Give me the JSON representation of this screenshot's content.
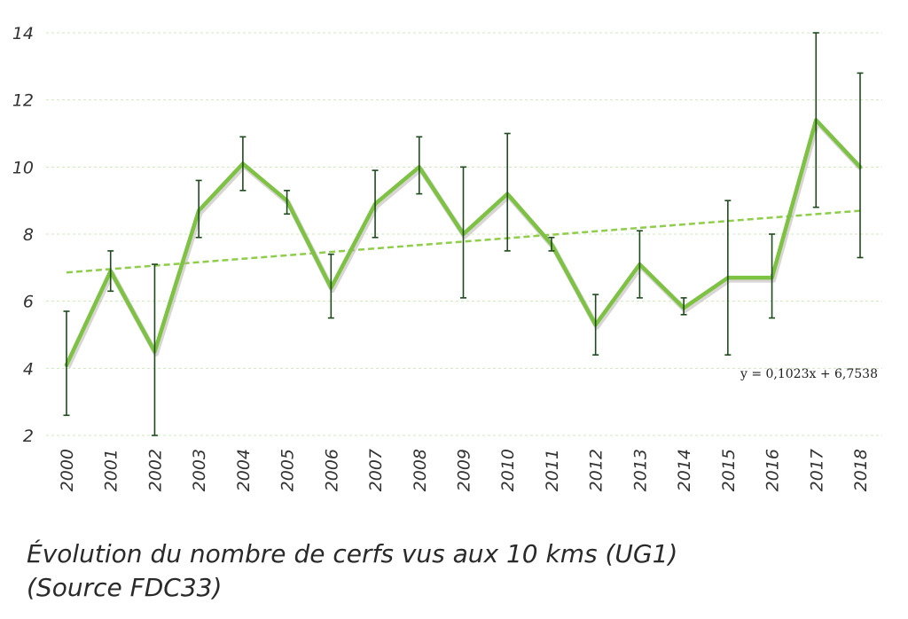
{
  "chart_data": {
    "type": "line",
    "x": [
      "2000",
      "2001",
      "2002",
      "2003",
      "2004",
      "2005",
      "2006",
      "2007",
      "2008",
      "2009",
      "2010",
      "2011",
      "2012",
      "2013",
      "2014",
      "2015",
      "2016",
      "2017",
      "2018"
    ],
    "series": [
      {
        "values": [
          4.1,
          6.9,
          4.5,
          8.7,
          10.1,
          9.0,
          6.4,
          8.9,
          10.0,
          8.0,
          9.2,
          7.7,
          5.3,
          7.1,
          5.8,
          6.7,
          6.7,
          11.4,
          10.0
        ],
        "error_low": [
          2.6,
          6.3,
          2.0,
          7.9,
          9.3,
          8.6,
          5.5,
          7.9,
          9.2,
          6.1,
          7.5,
          7.5,
          4.4,
          6.1,
          5.6,
          4.4,
          5.5,
          8.8,
          7.3
        ],
        "error_high": [
          5.7,
          7.5,
          7.1,
          9.6,
          10.9,
          9.3,
          7.4,
          9.9,
          10.9,
          10.0,
          11.0,
          7.9,
          6.2,
          8.1,
          6.1,
          9.0,
          8.0,
          14.0,
          12.8
        ],
        "color": "#7dc242"
      }
    ],
    "trendline": {
      "slope": 0.1023,
      "intercept": 6.7538,
      "equation_label": "y = 0,1023x + 6,7538",
      "color": "#8fce4a",
      "style": "dashed"
    },
    "yticks": [
      "2",
      "4",
      "6",
      "8",
      "10",
      "12",
      "14"
    ],
    "ylim": [
      2,
      14
    ],
    "grid": true,
    "grid_color": "#cfe8bd",
    "error_bar_color": "#1e4a1e"
  },
  "caption": {
    "line1": "Évolution du nombre de cerfs vus aux 10 kms (UG1)",
    "line2": "(Source FDC33)"
  }
}
